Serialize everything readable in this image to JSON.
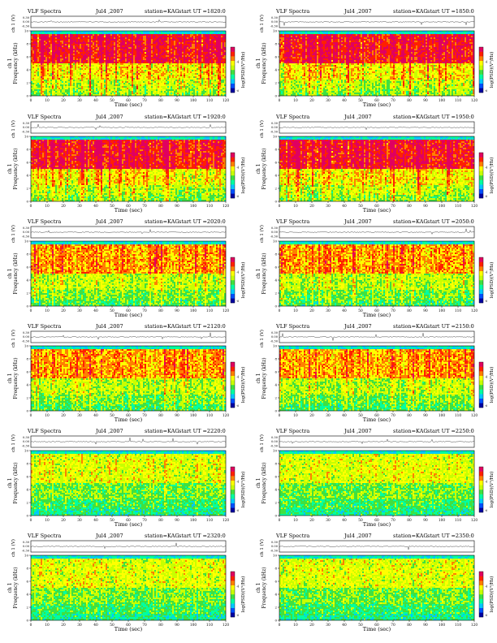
{
  "common": {
    "heading": "VLF Spectra",
    "date": "Jul4 ,2007",
    "station": "station=KAG",
    "start_prefix": "start  UT =",
    "wave_ylabel": "ch 1 (V)",
    "wave_ticks": [
      "0.30",
      "0.00",
      "-0.30"
    ],
    "spec_ylabel": "ch 1\nFrequency (kHz)",
    "freq_ticks": [
      "10",
      "8",
      "6",
      "4",
      "2",
      "0"
    ],
    "xlabel": "Time (sec)",
    "colorbar_label": "log(PSD)(V²/Hz)",
    "colorbar_ticks": [
      "-4",
      "-6"
    ],
    "colorscale": [
      "#0000a0",
      "#0050ff",
      "#00c8ff",
      "#00ffa0",
      "#40e040",
      "#c8ff00",
      "#ffff00",
      "#ff8000",
      "#ff2000",
      "#e00060"
    ]
  },
  "chart_data": [
    {
      "type": "heatmap",
      "start_ut": "1820:0",
      "x_ticks": [
        "0",
        "10",
        "20",
        "30",
        "40",
        "50",
        "60",
        "70",
        "80",
        "90",
        "100",
        "110",
        "120"
      ],
      "xlim": [
        0,
        120
      ],
      "ylim": [
        0,
        10
      ],
      "activity": "high"
    },
    {
      "type": "heatmap",
      "start_ut": "1850:0",
      "x_ticks": [
        "0",
        "10",
        "20",
        "30",
        "40",
        "50",
        "60",
        "70",
        "80",
        "90",
        "100",
        "110",
        "120"
      ],
      "xlim": [
        0,
        120
      ],
      "ylim": [
        0,
        10
      ],
      "activity": "high"
    },
    {
      "type": "heatmap",
      "start_ut": "1920:0",
      "x_ticks": [
        "0",
        "10",
        "20",
        "30",
        "40",
        "50",
        "60",
        "70",
        "80",
        "90",
        "100",
        "110",
        "120"
      ],
      "xlim": [
        0,
        120
      ],
      "ylim": [
        0,
        10
      ],
      "activity": "high"
    },
    {
      "type": "heatmap",
      "start_ut": "1950:0",
      "x_ticks": [
        "0",
        "10",
        "20",
        "30",
        "40",
        "50",
        "60",
        "70",
        "80",
        "90",
        "100",
        "110",
        "120"
      ],
      "xlim": [
        0,
        120
      ],
      "ylim": [
        0,
        10
      ],
      "activity": "high"
    },
    {
      "type": "heatmap",
      "start_ut": "2020:0",
      "x_ticks": [
        "0",
        "10",
        "20",
        "30",
        "40",
        "50",
        "60",
        "70",
        "80",
        "90",
        "100",
        "110",
        "120"
      ],
      "xlim": [
        0,
        120
      ],
      "ylim": [
        0,
        10
      ],
      "activity": "medium"
    },
    {
      "type": "heatmap",
      "start_ut": "2050:0",
      "x_ticks": [
        "0",
        "10",
        "20",
        "30",
        "40",
        "50",
        "60",
        "70",
        "80",
        "90",
        "100",
        "110",
        "120"
      ],
      "xlim": [
        0,
        120
      ],
      "ylim": [
        0,
        10
      ],
      "activity": "medium"
    },
    {
      "type": "heatmap",
      "start_ut": "2120:0",
      "x_ticks": [
        "0",
        "10",
        "20",
        "30",
        "40",
        "50",
        "60",
        "70",
        "80",
        "90",
        "100",
        "110",
        "120"
      ],
      "xlim": [
        0,
        120
      ],
      "ylim": [
        0,
        10
      ],
      "activity": "medium"
    },
    {
      "type": "heatmap",
      "start_ut": "2150:0",
      "x_ticks": [
        "0",
        "10",
        "20",
        "30",
        "40",
        "50",
        "60",
        "70",
        "80",
        "90",
        "100",
        "110",
        "120"
      ],
      "xlim": [
        0,
        120
      ],
      "ylim": [
        0,
        10
      ],
      "activity": "medium"
    },
    {
      "type": "heatmap",
      "start_ut": "2220:0",
      "x_ticks": [
        "0",
        "10",
        "20",
        "30",
        "40",
        "50",
        "60",
        "70",
        "80",
        "90",
        "100",
        "110",
        "120"
      ],
      "xlim": [
        0,
        120
      ],
      "ylim": [
        0,
        10
      ],
      "activity": "low"
    },
    {
      "type": "heatmap",
      "start_ut": "2250:0",
      "x_ticks": [
        "0",
        "10",
        "20",
        "30",
        "40",
        "50",
        "60",
        "70",
        "80",
        "90",
        "100",
        "110",
        "120"
      ],
      "xlim": [
        0,
        120
      ],
      "ylim": [
        0,
        10
      ],
      "activity": "low"
    },
    {
      "type": "heatmap",
      "start_ut": "2320:0",
      "x_ticks": [
        "0",
        "10",
        "20",
        "30",
        "40",
        "50",
        "60",
        "70",
        "80",
        "90",
        "100",
        "110",
        "120"
      ],
      "xlim": [
        0,
        120
      ],
      "ylim": [
        0,
        10
      ],
      "activity": "low"
    },
    {
      "type": "heatmap",
      "start_ut": "2350:0",
      "x_ticks": [
        "0",
        "10",
        "20",
        "30",
        "40",
        "50",
        "60",
        "70",
        "80",
        "90",
        "100",
        "110",
        "120"
      ],
      "xlim": [
        0,
        120
      ],
      "ylim": [
        0,
        10
      ],
      "activity": "low"
    }
  ]
}
